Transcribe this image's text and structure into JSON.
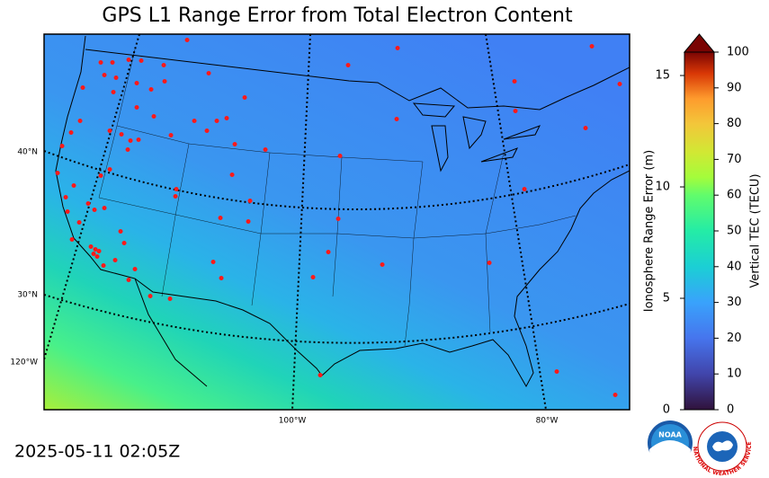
{
  "title": "GPS L1 Range Error from Total Electron Content",
  "timestamp": "2025-05-11 02:05Z",
  "map": {
    "lat_labels": [
      "40°N",
      "30°N"
    ],
    "lon_labels": [
      "120°W",
      "100°W",
      "80°W"
    ]
  },
  "colorbar": {
    "left_label": "Ionosphere Range Error (m)",
    "left_lim": [
      0,
      16.05
    ],
    "left_ticks": [
      0,
      5,
      10,
      15
    ],
    "right_label": "Vertical TEC (TECU)",
    "right_lim": [
      0,
      100
    ],
    "right_ticks": [
      0,
      10,
      20,
      30,
      40,
      50,
      60,
      70,
      80,
      90,
      100
    ]
  },
  "logos": {
    "noaa": "NOAA",
    "nws": "NATIONAL WEATHER SERVICE"
  }
}
